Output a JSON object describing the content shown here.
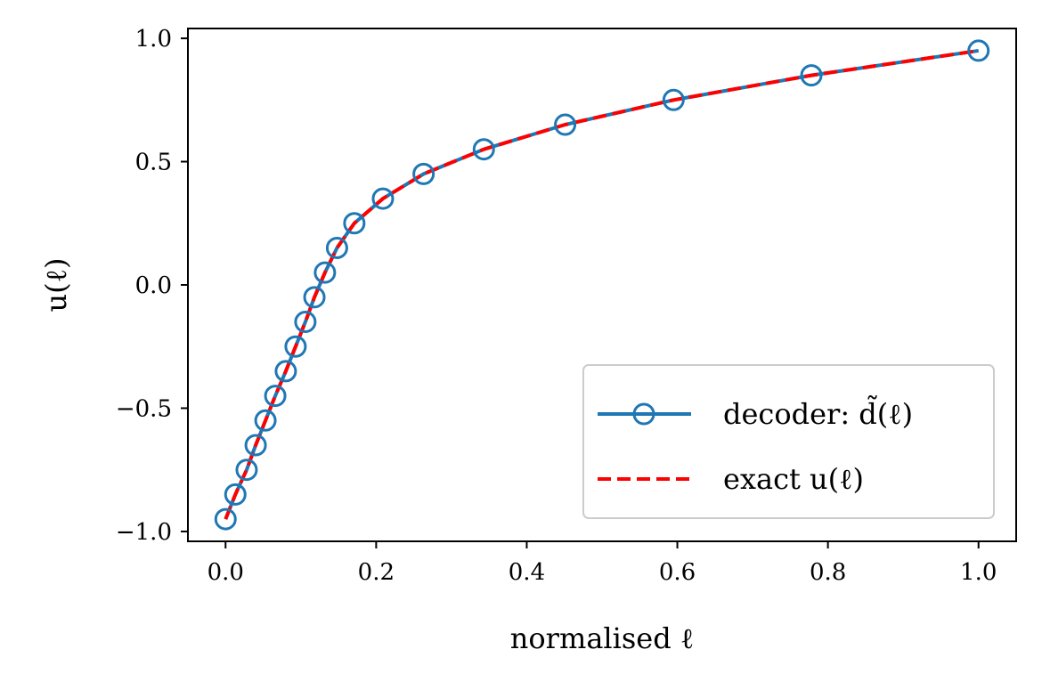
{
  "chart_data": {
    "type": "line",
    "xlabel": "normalised ℓ",
    "ylabel": "u(ℓ)",
    "xlim": [
      -0.05,
      1.05
    ],
    "ylim": [
      -1.04,
      1.04
    ],
    "x_ticks": [
      0.0,
      0.2,
      0.4,
      0.6,
      0.8,
      1.0
    ],
    "x_tick_labels": [
      "0.0",
      "0.2",
      "0.4",
      "0.6",
      "0.8",
      "1.0"
    ],
    "y_ticks": [
      -1.0,
      -0.5,
      0.0,
      0.5,
      1.0
    ],
    "y_tick_labels": [
      "−1.0",
      "−0.5",
      "0.0",
      "0.5",
      "1.0"
    ],
    "grid": false,
    "legend_position": "lower-right",
    "series": [
      {
        "name": "decoder: d̃(ℓ)",
        "style": "solid-line-with-circle-markers",
        "color": "#1f77b4",
        "x": [
          0.0,
          0.013,
          0.028,
          0.04,
          0.053,
          0.066,
          0.08,
          0.093,
          0.106,
          0.118,
          0.132,
          0.148,
          0.171,
          0.209,
          0.263,
          0.343,
          0.451,
          0.595,
          0.778,
          1.0
        ],
        "y": [
          -0.95,
          -0.85,
          -0.75,
          -0.65,
          -0.55,
          -0.45,
          -0.35,
          -0.25,
          -0.15,
          -0.05,
          0.05,
          0.15,
          0.25,
          0.35,
          0.45,
          0.55,
          0.65,
          0.75,
          0.85,
          0.95
        ]
      },
      {
        "name": "exact u(ℓ)",
        "style": "dashed-line",
        "color": "#ff0000",
        "x": [
          0.0,
          0.013,
          0.028,
          0.04,
          0.053,
          0.066,
          0.08,
          0.093,
          0.106,
          0.118,
          0.132,
          0.148,
          0.171,
          0.209,
          0.263,
          0.343,
          0.451,
          0.595,
          0.778,
          1.0
        ],
        "y": [
          -0.95,
          -0.85,
          -0.75,
          -0.65,
          -0.55,
          -0.45,
          -0.35,
          -0.25,
          -0.15,
          -0.05,
          0.05,
          0.15,
          0.25,
          0.35,
          0.45,
          0.55,
          0.65,
          0.75,
          0.85,
          0.95
        ]
      }
    ]
  }
}
